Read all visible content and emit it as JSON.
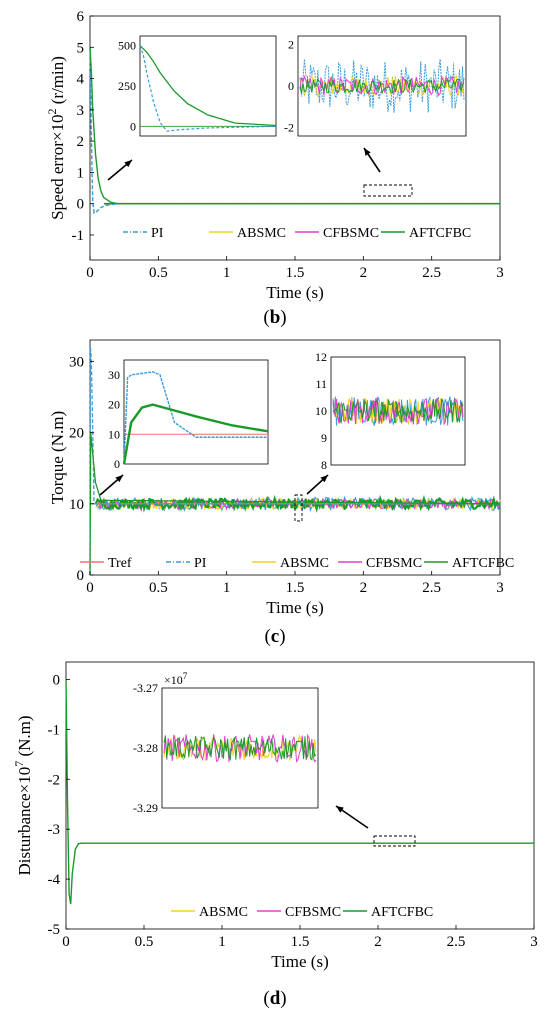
{
  "colors": {
    "PI": "#3a9bd9",
    "ABSMC": "#f2d21b",
    "CFBSMC": "#e040d0",
    "AFTCFBC": "#1a9a2a",
    "Tref": "#f07070"
  },
  "chart_data": [
    {
      "type": "line",
      "panel_label": "b",
      "xlabel": "Time (s)",
      "ylabel": "Speed error×10",
      "ylabel_exp": "2",
      "ylabel_unit": " (r/min)",
      "xlim": [
        0,
        3
      ],
      "ylim": [
        -1.8,
        6
      ],
      "xticks": [
        "0",
        "0.5",
        "1",
        "1.5",
        "2",
        "2.5",
        "3"
      ],
      "yticks": [
        "-1",
        "0",
        "1",
        "2",
        "3",
        "4",
        "5",
        "6"
      ],
      "legend": [
        "PI",
        "ABSMC",
        "CFBSMC",
        "AFTCFBC"
      ],
      "legend_position": "bottom",
      "series": [
        {
          "name": "PI",
          "x": [
            0,
            0.005,
            0.01,
            0.015,
            0.02,
            0.03,
            0.05,
            0.08,
            0.12,
            0.2,
            3
          ],
          "values": [
            5.0,
            3.6,
            2.2,
            1.0,
            0.1,
            -0.3,
            -0.25,
            -0.12,
            -0.05,
            0,
            0
          ]
        },
        {
          "name": "AFTCFBC",
          "x": [
            0,
            0.01,
            0.02,
            0.04,
            0.06,
            0.08,
            0.1,
            0.15,
            0.2,
            3
          ],
          "values": [
            5.0,
            4.2,
            3.0,
            1.6,
            0.8,
            0.4,
            0.2,
            0.05,
            0,
            0
          ]
        }
      ],
      "insets": [
        {
          "xlim": [
            0,
            0.2
          ],
          "ylim": [
            -60,
            560
          ],
          "yticks": [
            "0",
            "250",
            "500"
          ]
        },
        {
          "ylim": [
            -2.4,
            2.4
          ],
          "yticks": [
            "-2",
            "0",
            "2"
          ],
          "noise": {
            "PI": 1.3,
            "ABSMC": 0.5,
            "CFBSMC": 0.45,
            "AFTCFBC": 0.35
          }
        }
      ]
    },
    {
      "type": "line",
      "panel_label": "c",
      "xlabel": "Time (s)",
      "ylabel": "Torque (N.m)",
      "xlim": [
        0,
        3
      ],
      "ylim": [
        0,
        33
      ],
      "xticks": [
        "0",
        "0.5",
        "1",
        "1.5",
        "2",
        "2.5",
        "3"
      ],
      "yticks": [
        "0",
        "10",
        "20",
        "30"
      ],
      "legend": [
        "Tref",
        "PI",
        "ABSMC",
        "CFBSMC",
        "AFTCFBC"
      ],
      "legend_position": "bottom",
      "series": [
        {
          "name": "Tref",
          "x": [
            0,
            3
          ],
          "values": [
            10,
            10
          ]
        },
        {
          "name": "PI",
          "x": [
            0,
            0.003,
            0.01,
            0.03,
            3
          ],
          "values": [
            0,
            32,
            30,
            10,
            10
          ]
        },
        {
          "name": "AFTCFBC",
          "x": [
            0,
            0.005,
            0.02,
            0.04,
            0.08,
            3
          ],
          "values": [
            0,
            20,
            17,
            13,
            10.5,
            10
          ]
        }
      ],
      "insets": [
        {
          "xlim": [
            0,
            0.2
          ],
          "ylim": [
            0,
            35
          ],
          "yticks": [
            "0",
            "10",
            "20",
            "30"
          ]
        },
        {
          "ylim": [
            8,
            12
          ],
          "yticks": [
            "8",
            "9",
            "10",
            "11",
            "12"
          ],
          "noise": {
            "PI": 0.55,
            "ABSMC": 0.5,
            "CFBSMC": 0.5,
            "AFTCFBC": 0.45
          }
        }
      ]
    },
    {
      "type": "line",
      "panel_label": "d",
      "xlabel": "Time (s)",
      "ylabel": "Disturbance×10",
      "ylabel_exp": "7",
      "ylabel_unit": " (N.m)",
      "xlim": [
        0,
        3
      ],
      "ylim": [
        -5,
        0.35
      ],
      "xticks": [
        "0",
        "0.5",
        "1",
        "1.5",
        "2",
        "2.5",
        "3"
      ],
      "yticks": [
        "-5",
        "-4",
        "-3",
        "-2",
        "-1",
        "0"
      ],
      "legend": [
        "ABSMC",
        "CFBSMC",
        "AFTCFBC"
      ],
      "legend_position": "bottom",
      "series": [
        {
          "name": "AFTCFBC",
          "x": [
            0,
            0.01,
            0.02,
            0.03,
            0.04,
            0.06,
            0.08,
            0.1,
            3
          ],
          "values": [
            0,
            -2.5,
            -4.3,
            -4.5,
            -3.9,
            -3.4,
            -3.29,
            -3.28,
            -3.28
          ]
        }
      ],
      "insets": [
        {
          "ylim": [
            -3.29,
            -3.27
          ],
          "yticks": [
            "-3.27",
            "-3.28",
            "-3.29"
          ],
          "exponent": "×10",
          "exponent_power": "7",
          "noise": {
            "ABSMC": 0.0021,
            "CFBSMC": 0.0023,
            "AFTCFBC": 0.002
          }
        }
      ]
    }
  ]
}
